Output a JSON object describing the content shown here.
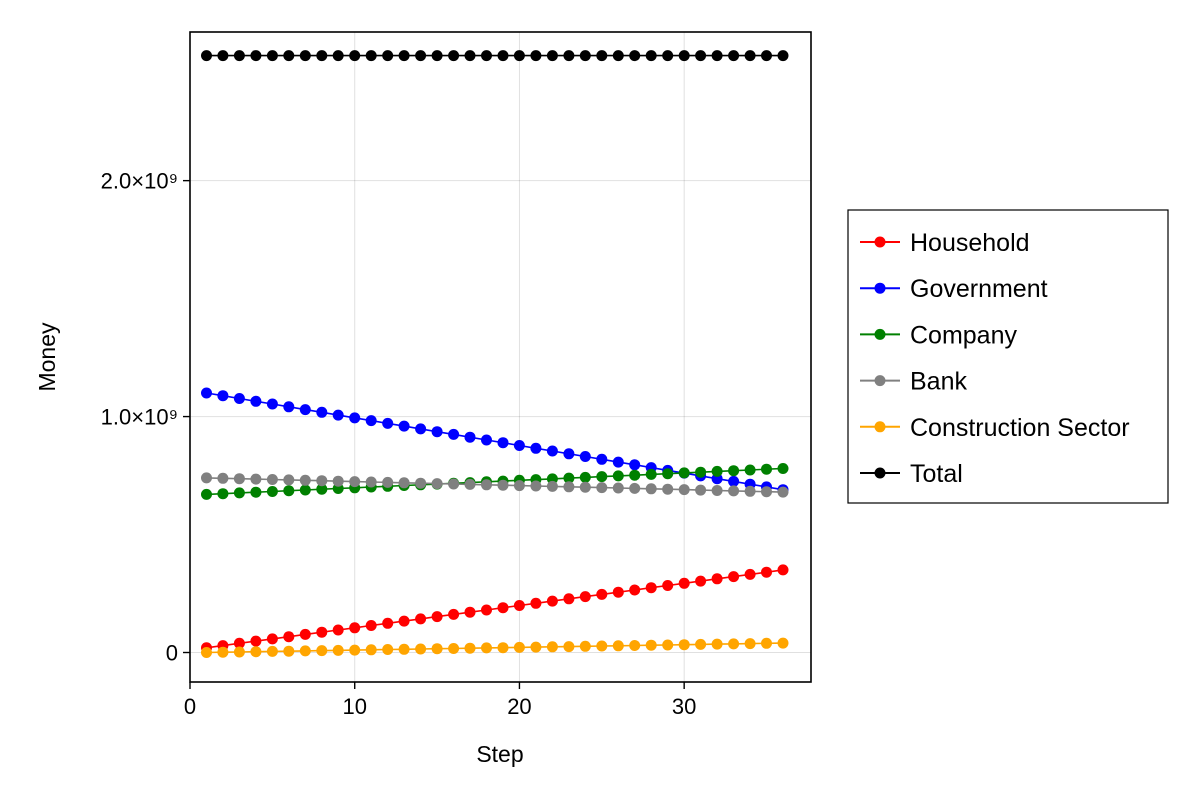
{
  "chart_data": {
    "type": "scatter",
    "xlabel": "Step",
    "ylabel": "Money",
    "xlim": [
      0,
      37.7
    ],
    "ylim": [
      -125000000,
      2630000000
    ],
    "grid": true,
    "legend_position": "right",
    "x": [
      1,
      2,
      3,
      4,
      5,
      6,
      7,
      8,
      9,
      10,
      11,
      12,
      13,
      14,
      15,
      16,
      17,
      18,
      19,
      20,
      21,
      22,
      23,
      24,
      25,
      26,
      27,
      28,
      29,
      30,
      31,
      32,
      33,
      34,
      35,
      36
    ],
    "xticks": [
      {
        "value": 0,
        "label": "0"
      },
      {
        "value": 10,
        "label": "10"
      },
      {
        "value": 20,
        "label": "20"
      },
      {
        "value": 30,
        "label": "30"
      }
    ],
    "yticks": [
      {
        "value": 0,
        "label": "0"
      },
      {
        "value": 1000000000,
        "label": "1.0×10⁹"
      },
      {
        "value": 2000000000,
        "label": "2.0×10⁹"
      }
    ],
    "series": [
      {
        "name": "Household",
        "color": "#ff0000",
        "start": 20000000,
        "end": 350000000
      },
      {
        "name": "Government",
        "color": "#0000ff",
        "start": 1100000000,
        "end": 690000000
      },
      {
        "name": "Company",
        "color": "#008000",
        "start": 670000000,
        "end": 780000000
      },
      {
        "name": "Bank",
        "color": "#808080",
        "start": 740000000,
        "end": 680000000
      },
      {
        "name": "Construction Sector",
        "color": "#ffa500",
        "start": 0,
        "end": 40000000
      },
      {
        "name": "Total",
        "color": "#000000",
        "start": 2530000000,
        "end": 2530000000
      }
    ]
  }
}
